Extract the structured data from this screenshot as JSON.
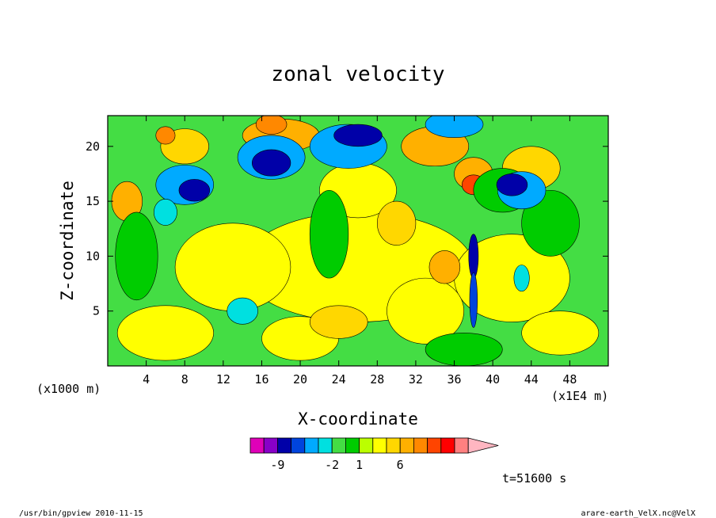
{
  "chart_data": {
    "type": "heatmap",
    "title": "zonal velocity",
    "xlabel": "X-coordinate",
    "ylabel": "Z-coordinate",
    "x_unit_left": "(x1000 m)",
    "x_unit_right": "(x1E4 m)",
    "xlim": [
      0,
      52
    ],
    "ylim": [
      0,
      22.8
    ],
    "x_ticks": [
      4,
      8,
      12,
      16,
      20,
      24,
      28,
      32,
      36,
      40,
      44,
      48
    ],
    "y_ticks": [
      5,
      10,
      15,
      20
    ],
    "colorbar": {
      "colors": [
        "#e000b8",
        "#8800c8",
        "#0000a8",
        "#0044dd",
        "#00aaff",
        "#00e0e0",
        "#44dd44",
        "#00cc00",
        "#bbff00",
        "#ffff00",
        "#ffd700",
        "#ffb000",
        "#ff8800",
        "#ff4400",
        "#ff0000",
        "#ff8080",
        "#ffb6c1"
      ],
      "tick_labels": [
        "-9",
        "-2",
        "1",
        "6"
      ]
    },
    "time_label": "t=51600 s"
  },
  "footer": {
    "left": "/usr/bin/gpview  2010-11-15",
    "right": "arare-earth_VelX.nc@VelX"
  }
}
